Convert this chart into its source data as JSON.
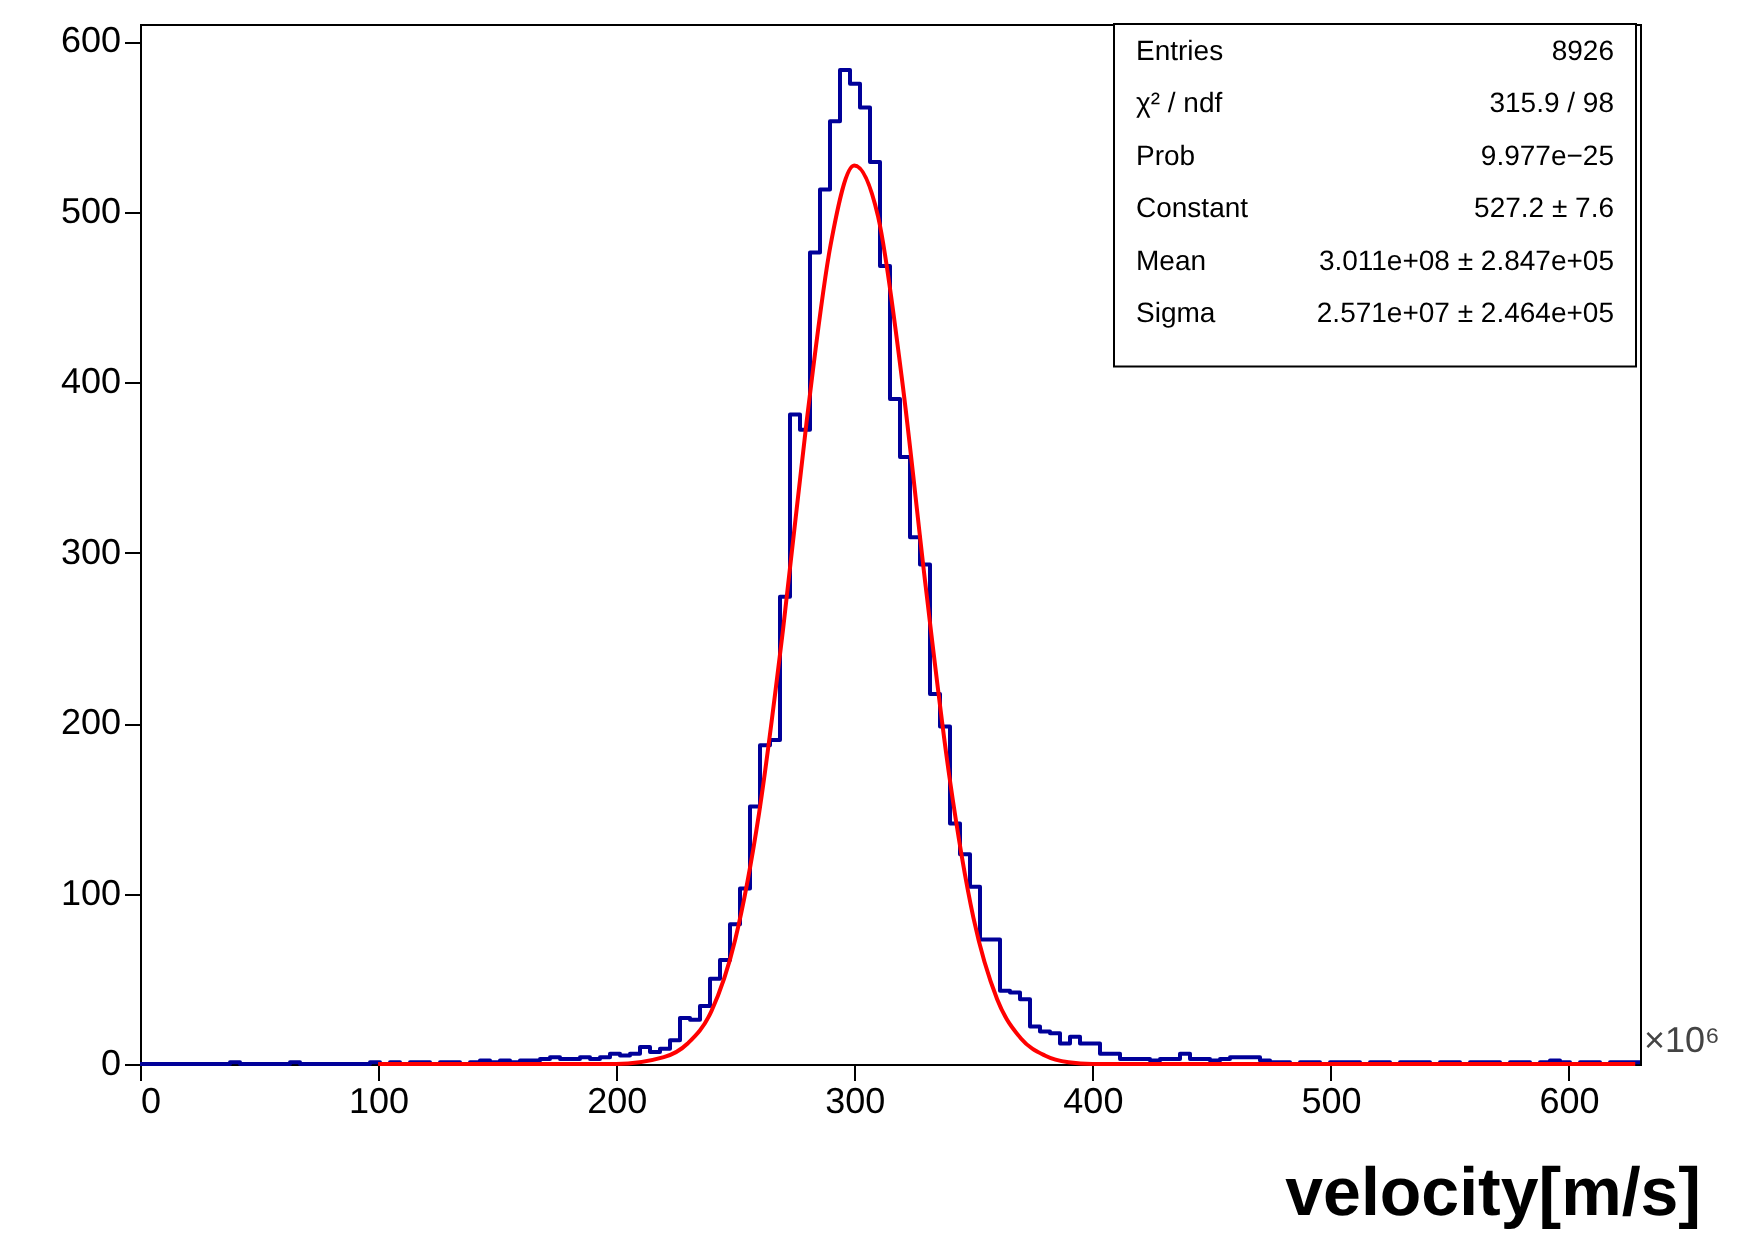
{
  "chart_data": {
    "type": "histogram",
    "xlabel": "velocity[m/s]",
    "color": "#000099",
    "bins": [
      0,
      4.2,
      8.4,
      12.6,
      16.8,
      21,
      25.2,
      29.4,
      33.6,
      37.8,
      42,
      46.2,
      50.4,
      54.6,
      58.8,
      63,
      67.2,
      71.4,
      75.6,
      79.8,
      84,
      88.2,
      92.4,
      96.6,
      100.8,
      105,
      109.2,
      113.4,
      117.6,
      121.8,
      126,
      130.2,
      134.4,
      138.6,
      142.8,
      147,
      151.2,
      155.4,
      159.6,
      163.8,
      168,
      172.2,
      176.4,
      180.6,
      184.8,
      189,
      193.2,
      197.4,
      201.6,
      205.8,
      210,
      214.2,
      218.4,
      222.6,
      226.8,
      231,
      235.2,
      239.4,
      243.6,
      247.8,
      252,
      256.2,
      260.4,
      264.6,
      268.8,
      273,
      277.2,
      281.4,
      285.6,
      289.8,
      294,
      298.2,
      302.4,
      306.6,
      310.8,
      315,
      319.2,
      323.4,
      327.6,
      331.8,
      336,
      340.2,
      344.4,
      348.6,
      352.8,
      357,
      361.2,
      365.4,
      369.6,
      373.8,
      378,
      382.2,
      386.4,
      390.6,
      394.8,
      399,
      403.2,
      407.4,
      411.6,
      415.8,
      420,
      424.2,
      428.4,
      432.6,
      436.8,
      441,
      445.2,
      449.4,
      453.6,
      457.8,
      462,
      466.2,
      470.4,
      474.6,
      478.8,
      483,
      487.2,
      491.4,
      495.6,
      499.8,
      504,
      508.2,
      512.4,
      516.6,
      520.8,
      525,
      529.2,
      533.4,
      537.6,
      541.8,
      546,
      550.2,
      554.4,
      558.6,
      562.8,
      567,
      571.2,
      575.4,
      579.6,
      583.8,
      588,
      592.2,
      596.4,
      600.6,
      604.8,
      609,
      613.2,
      617.4,
      621.6,
      625.8,
      630
    ],
    "values": [
      0,
      0,
      0,
      0,
      0,
      0,
      0,
      0,
      0,
      1,
      0,
      0,
      0,
      0,
      0,
      1,
      0,
      0,
      0,
      0,
      0,
      0,
      0,
      1,
      0,
      1,
      0,
      1,
      1,
      0,
      1,
      1,
      0,
      1,
      2,
      1,
      2,
      1,
      2,
      2,
      3,
      4,
      3,
      3,
      4,
      3,
      4,
      6,
      5,
      6,
      10,
      7,
      9,
      14,
      27,
      26,
      34,
      50,
      61,
      82,
      103,
      151,
      187,
      190,
      274,
      381,
      372,
      476,
      513,
      553,
      583,
      575,
      561,
      529,
      468,
      390,
      356,
      309,
      293,
      217,
      198,
      141,
      123,
      104,
      73,
      73,
      43,
      42,
      38,
      22,
      19,
      18,
      12,
      16,
      12,
      12,
      6,
      6,
      3,
      3,
      3,
      2,
      3,
      3,
      6,
      3,
      3,
      2,
      3,
      4,
      4,
      4,
      2,
      1,
      1,
      0,
      1,
      1,
      0,
      1,
      1,
      1,
      0,
      1,
      1,
      0,
      1,
      1,
      1,
      0,
      1,
      1,
      0,
      1,
      1,
      1,
      0,
      1,
      1,
      0,
      1,
      2,
      1,
      0,
      1,
      1,
      0,
      1,
      1,
      1
    ],
    "series": [
      {
        "type": "line",
        "color": "#ff0000",
        "x": [
          100,
          200,
          220,
          230,
          240,
          250,
          260,
          270,
          280,
          290,
          300,
          310,
          320,
          330,
          340,
          350,
          360,
          370,
          380,
          390,
          400,
          500,
          628
        ],
        "values": [
          0,
          0,
          4,
          12,
          31,
          73,
          147,
          254,
          377,
          480,
          527,
          497,
          402,
          280,
          168,
          86,
          38,
          15,
          5,
          1,
          0,
          0,
          0
        ]
      }
    ],
    "xlim": [
      0,
      630
    ],
    "ylim": [
      0,
      610
    ],
    "xticks": [
      0,
      100,
      200,
      300,
      400,
      500,
      600
    ],
    "yticks": [
      0,
      100,
      200,
      300,
      400,
      500,
      600
    ],
    "annotations": [
      "Entries",
      "8926",
      "χ² / ndf",
      "315.9 / 98",
      "Prob",
      "9.977e−25",
      "Constant",
      "527.2 ± 7.6",
      "Mean",
      "3.011e+08 ± 2.847e+05",
      "Sigma",
      "2.571e+07 ± 2.464e+05",
      "×10⁶"
    ]
  }
}
